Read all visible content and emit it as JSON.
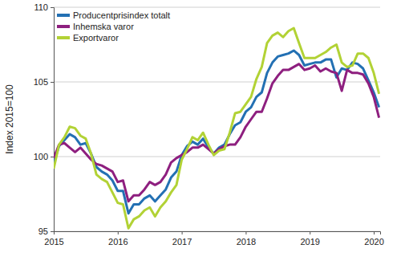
{
  "chart_data": {
    "type": "line",
    "y_label": "Index 2015=100",
    "x": [
      2015,
      2015.083,
      2015.167,
      2015.25,
      2015.333,
      2015.417,
      2015.5,
      2015.583,
      2015.667,
      2015.75,
      2015.833,
      2015.917,
      2016,
      2016.083,
      2016.167,
      2016.25,
      2016.333,
      2016.417,
      2016.5,
      2016.583,
      2016.667,
      2016.75,
      2016.833,
      2016.917,
      2017,
      2017.083,
      2017.167,
      2017.25,
      2017.333,
      2017.417,
      2017.5,
      2017.583,
      2017.667,
      2017.75,
      2017.833,
      2017.917,
      2018,
      2018.083,
      2018.167,
      2018.25,
      2018.333,
      2018.417,
      2018.5,
      2018.583,
      2018.667,
      2018.75,
      2018.833,
      2018.917,
      2019,
      2019.083,
      2019.167,
      2019.25,
      2019.333,
      2019.417,
      2019.5,
      2019.583,
      2019.667,
      2019.75,
      2019.833,
      2019.917,
      2020,
      2020.083
    ],
    "series": [
      {
        "name": "Producentprisindex totalt",
        "color": "#2370b3",
        "values": [
          99.6,
          100.7,
          101.1,
          101.5,
          101.3,
          100.8,
          100.9,
          100.2,
          99.3,
          99.0,
          98.8,
          98.4,
          97.7,
          97.7,
          96.2,
          96.8,
          96.8,
          97.2,
          97.4,
          97.0,
          97.4,
          97.8,
          98.6,
          99.0,
          100.1,
          100.7,
          101.0,
          100.8,
          101.2,
          100.6,
          100.2,
          100.6,
          100.8,
          101.5,
          102.1,
          102.3,
          103.0,
          103.3,
          104.0,
          104.3,
          105.6,
          106.3,
          106.7,
          106.8,
          106.9,
          107.1,
          106.8,
          106.1,
          106.2,
          106.3,
          106.3,
          106.5,
          106.5,
          105.3,
          105.9,
          105.8,
          106.3,
          106.2,
          105.9,
          105.1,
          104.3,
          103.3
        ]
      },
      {
        "name": "Inhemska varor",
        "color": "#8e1f7f",
        "values": [
          99.9,
          100.8,
          100.9,
          100.6,
          100.3,
          100.6,
          100.2,
          99.8,
          99.5,
          99.4,
          99.2,
          99.0,
          98.3,
          98.4,
          97.0,
          97.4,
          97.4,
          97.8,
          98.3,
          98.1,
          98.3,
          98.8,
          99.6,
          99.9,
          100.1,
          100.3,
          100.6,
          100.6,
          100.8,
          100.5,
          100.2,
          100.5,
          100.7,
          100.8,
          100.8,
          101.3,
          102.0,
          102.5,
          103.0,
          103.0,
          103.9,
          104.9,
          105.4,
          105.8,
          105.8,
          106.0,
          106.2,
          105.8,
          105.9,
          106.1,
          105.7,
          105.9,
          105.7,
          105.6,
          104.4,
          105.8,
          105.6,
          105.6,
          105.5,
          104.9,
          104.0,
          102.6
        ]
      },
      {
        "name": "Exportvaror",
        "color": "#b2d235",
        "values": [
          99.2,
          100.8,
          101.3,
          102.0,
          101.9,
          101.4,
          101.2,
          100.2,
          98.8,
          98.5,
          98.3,
          97.6,
          96.9,
          96.8,
          95.2,
          95.8,
          96.0,
          96.4,
          96.6,
          96.0,
          96.6,
          97.0,
          97.6,
          98.1,
          99.8,
          100.5,
          101.3,
          101.1,
          101.6,
          100.8,
          100.1,
          100.4,
          100.5,
          101.6,
          102.9,
          103.0,
          103.5,
          104.0,
          105.2,
          106.0,
          107.6,
          108.1,
          108.3,
          108.0,
          108.4,
          108.6,
          107.6,
          106.6,
          106.6,
          106.6,
          106.8,
          107.0,
          107.3,
          107.5,
          106.3,
          106.0,
          106.1,
          106.9,
          106.9,
          106.6,
          105.6,
          104.2
        ]
      }
    ],
    "xlim": [
      2015,
      2020.1
    ],
    "xticks": [
      2015,
      2016,
      2017,
      2018,
      2019,
      2020
    ],
    "ylim": [
      95,
      110
    ],
    "yticks": [
      95,
      100,
      105,
      110
    ],
    "grid": true,
    "legend": "upper left"
  }
}
